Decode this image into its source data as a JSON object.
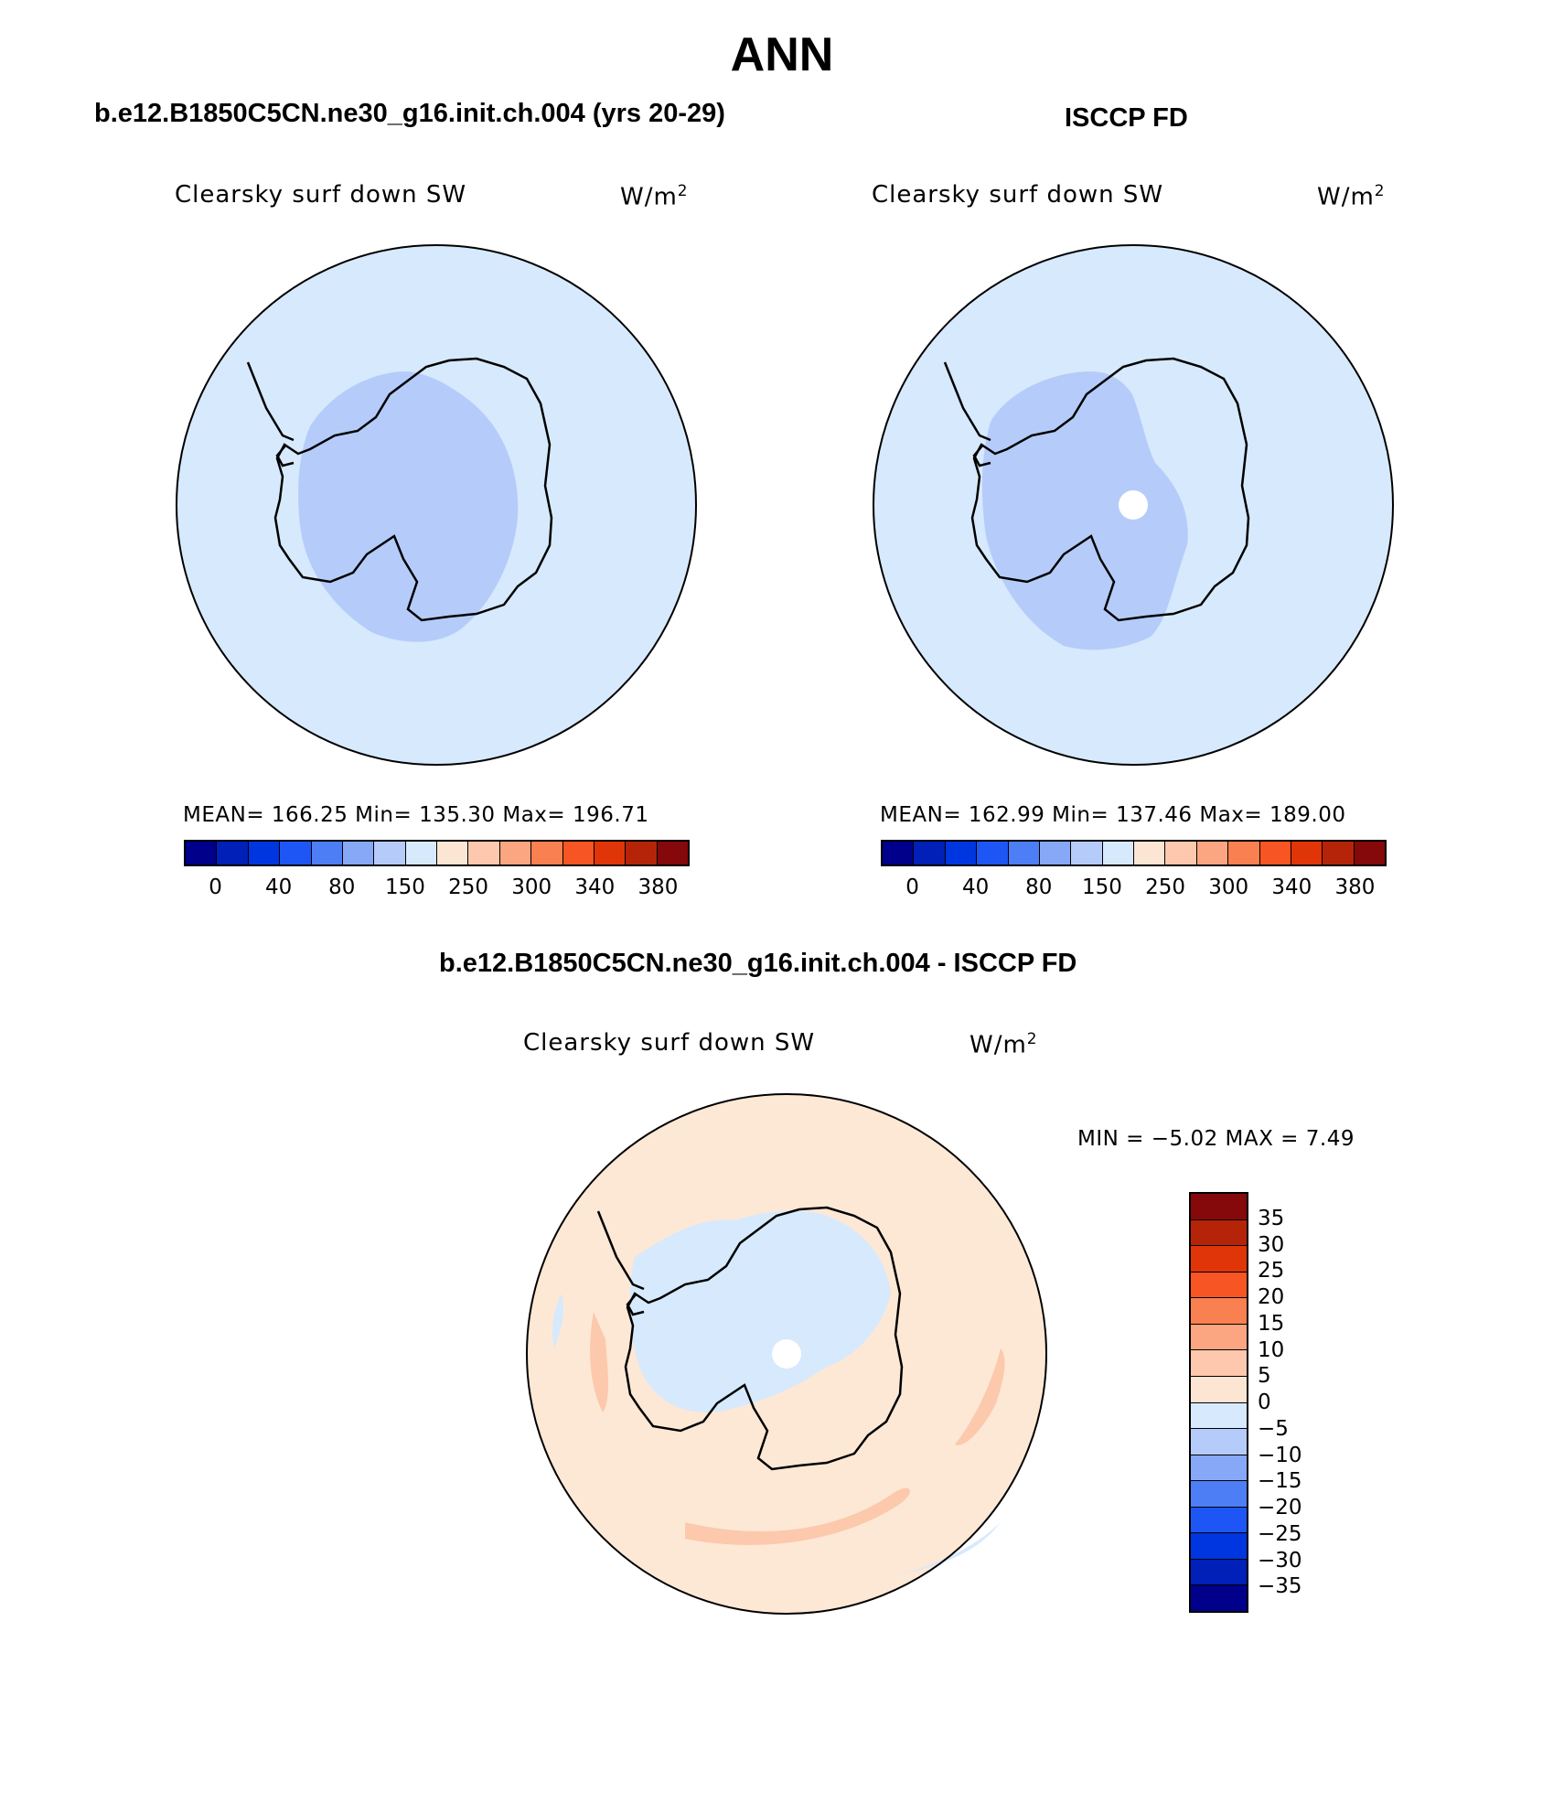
{
  "title": "ANN",
  "panels": [
    {
      "heading": "b.e12.B1850C5CN.ne30_g16.init.ch.004 (yrs 20-29)",
      "variable": "Clearsky surf down SW",
      "units_base": "W/m",
      "units_exp": "2",
      "stats": "MEAN= 166.25   Min= 135.30   Max= 196.71"
    },
    {
      "heading": "ISCCP FD",
      "variable": "Clearsky surf down SW",
      "units_base": "W/m",
      "units_exp": "2",
      "stats": "MEAN= 162.99   Min= 137.46   Max= 189.00"
    },
    {
      "heading": "b.e12.B1850C5CN.ne30_g16.init.ch.004 - ISCCP FD",
      "variable": "Clearsky surf down SW",
      "units_base": "W/m",
      "units_exp": "2",
      "stats": "MIN =   −5.02  MAX =     7.49"
    }
  ],
  "colorbar_abs": {
    "colors": [
      "#00008b",
      "#0020b8",
      "#0036e0",
      "#1e56f5",
      "#4d7ef5",
      "#87a8f6",
      "#b5ccfa",
      "#d7e9fc",
      "#fde5d4",
      "#fdc8ad",
      "#fba581",
      "#f98050",
      "#f75523",
      "#e03508",
      "#b52408",
      "#85080a"
    ],
    "tick_labels": [
      "0",
      "40",
      "80",
      "150",
      "250",
      "300",
      "340",
      "380"
    ]
  },
  "colorbar_diff": {
    "colors": [
      "#85080a",
      "#b52408",
      "#e03508",
      "#f75523",
      "#f98050",
      "#fba581",
      "#fdc8ad",
      "#fde5d4",
      "#d7e9fc",
      "#b5ccfa",
      "#87a8f6",
      "#4d7ef5",
      "#1e56f5",
      "#0036e0",
      "#0020b8",
      "#00008b"
    ],
    "tick_labels": [
      "35",
      "30",
      "25",
      "20",
      "15",
      "10",
      "5",
      "0",
      "−5",
      "−10",
      "−15",
      "−20",
      "−25",
      "−30",
      "−35"
    ]
  },
  "map_colors": {
    "ocean_abs": "#d7e9fc",
    "low_region": "#b5ccfa",
    "diff_bg": "#fde8d6",
    "diff_pos": "#fcc9ac",
    "diff_neg": "#d7e9fc",
    "missing": "#ffffff"
  }
}
